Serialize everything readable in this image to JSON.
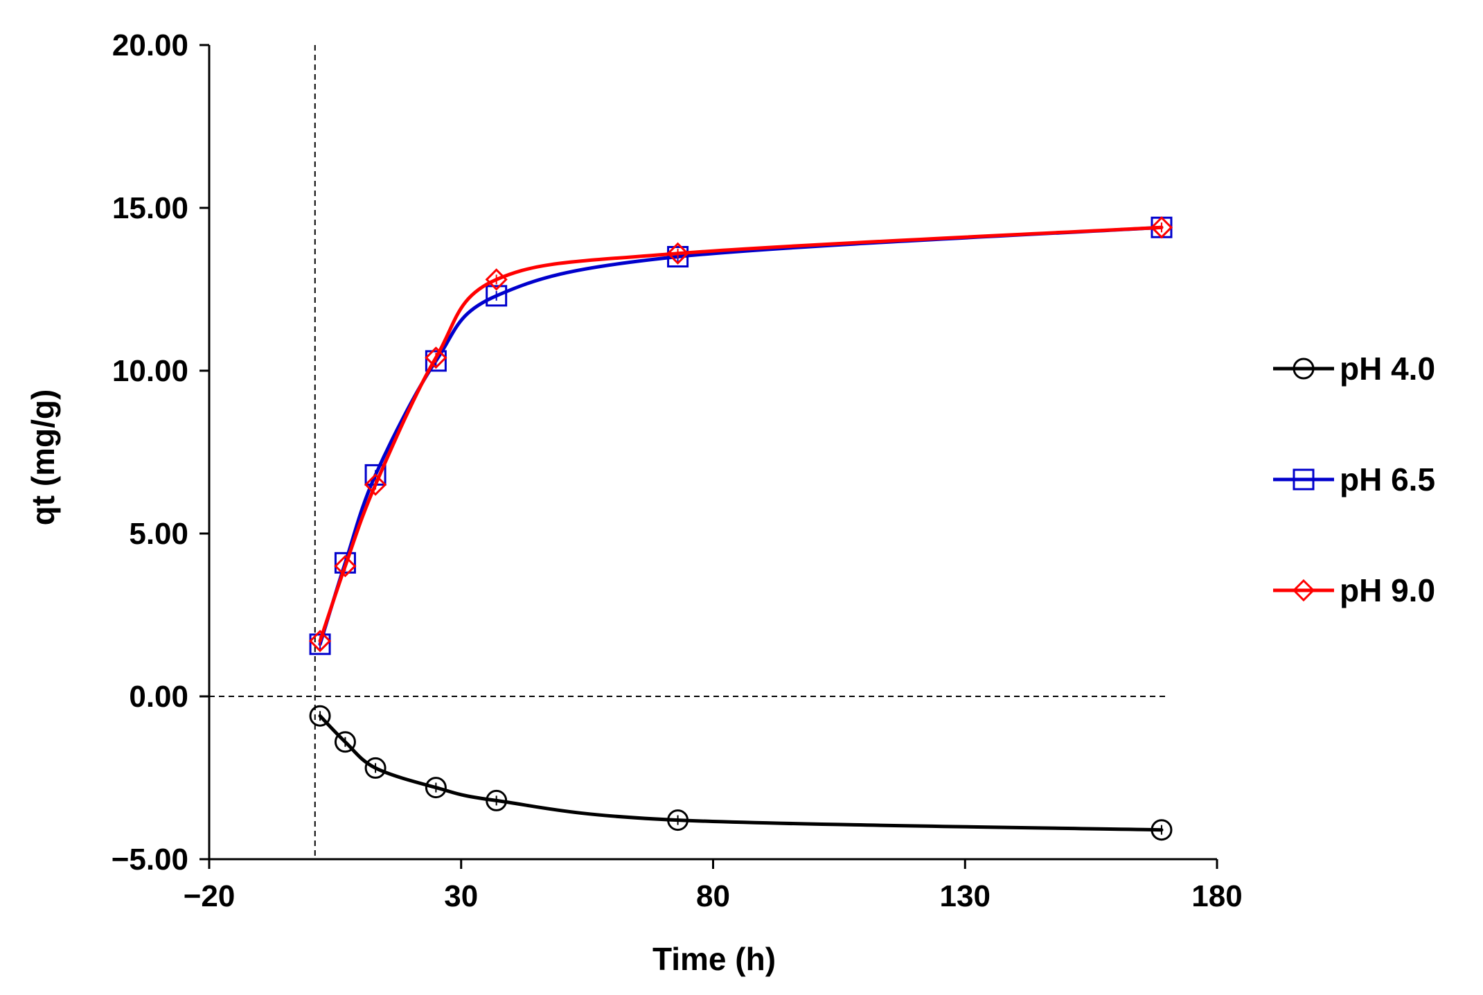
{
  "chart_data": {
    "type": "line",
    "title": "",
    "xlabel": "Time (h)",
    "ylabel": "qt (mg/g)",
    "xlim": [
      -20,
      180
    ],
    "ylim": [
      -5,
      20
    ],
    "x_ticks": [
      -20,
      30,
      80,
      130,
      180
    ],
    "x_tick_labels": [
      "−20",
      "30",
      "80",
      "130",
      "180"
    ],
    "y_ticks": [
      -5,
      0,
      5,
      10,
      15,
      20
    ],
    "y_tick_labels": [
      "−5.00",
      "0.00",
      "5.00",
      "10.00",
      "15.00",
      "20.00"
    ],
    "grid": false,
    "legend_position": "right",
    "reference_lines": [
      {
        "orientation": "horizontal",
        "value": 0,
        "style": "dashed"
      },
      {
        "orientation": "vertical",
        "value": 1,
        "style": "dashed"
      }
    ],
    "series": [
      {
        "name": "pH 4.0",
        "color": "#000000",
        "marker": "circle",
        "x": [
          2,
          7,
          13,
          25,
          37,
          73,
          169
        ],
        "values": [
          -0.6,
          -1.4,
          -2.2,
          -2.8,
          -3.2,
          -3.8,
          -4.1
        ]
      },
      {
        "name": "pH 6.5",
        "color": "#0000CC",
        "marker": "square",
        "x": [
          2,
          7,
          13,
          25,
          37,
          73,
          169
        ],
        "values": [
          1.6,
          4.1,
          6.8,
          10.3,
          12.3,
          13.5,
          14.4
        ]
      },
      {
        "name": "pH 9.0",
        "color": "#FF0000",
        "marker": "diamond",
        "x": [
          2,
          7,
          13,
          25,
          37,
          73,
          169
        ],
        "values": [
          1.7,
          4.0,
          6.5,
          10.4,
          12.8,
          13.6,
          14.4
        ]
      }
    ]
  }
}
